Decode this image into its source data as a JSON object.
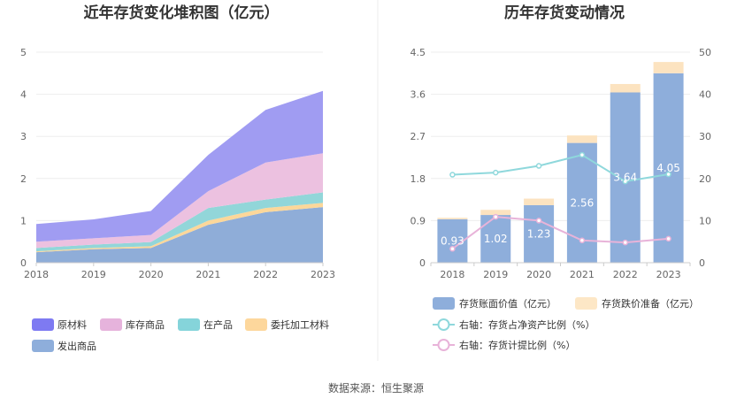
{
  "source_note": "数据来源：恒生聚源",
  "chart_data": [
    {
      "type": "area",
      "title": "近年存货变化堆积图（亿元）",
      "stacked": true,
      "categories": [
        "2018",
        "2019",
        "2020",
        "2021",
        "2022",
        "2023"
      ],
      "y_ticks": [
        "0",
        "1",
        "2",
        "3",
        "4",
        "5"
      ],
      "ylim": [
        0,
        5
      ],
      "legend_position": "bottom",
      "series": [
        {
          "name": "发出商品",
          "color": "#8fadd8",
          "values": [
            0.25,
            0.32,
            0.35,
            0.9,
            1.2,
            1.32
          ]
        },
        {
          "name": "委托加工材料",
          "color": "#fcd79a",
          "values": [
            0.02,
            0.03,
            0.04,
            0.1,
            0.1,
            0.1
          ]
        },
        {
          "name": "在产品",
          "color": "#92d6d9",
          "values": [
            0.08,
            0.08,
            0.1,
            0.3,
            0.2,
            0.25
          ]
        },
        {
          "name": "库存商品",
          "color": "#ecc1e0",
          "values": [
            0.15,
            0.15,
            0.17,
            0.4,
            0.88,
            0.93
          ]
        },
        {
          "name": "原材料",
          "color": "#a09cf2",
          "values": [
            0.42,
            0.45,
            0.57,
            0.86,
            1.25,
            1.48
          ]
        }
      ],
      "legend_order": [
        "原材料",
        "库存商品",
        "在产品",
        "委托加工材料",
        "发出商品"
      ],
      "legend_swatch_colors": {
        "原材料": "#7e7af2",
        "库存商品": "#e6b3dc",
        "在产品": "#85d4da",
        "委托加工材料": "#fdd79c",
        "发出商品": "#8eaedb"
      }
    },
    {
      "type": "bar",
      "title": "历年存货变动情况",
      "stacked": true,
      "categories": [
        "2018",
        "2019",
        "2020",
        "2021",
        "2022",
        "2023"
      ],
      "y_left_ticks": [
        "0",
        "0.9",
        "1.8",
        "2.7",
        "3.6",
        "4.5"
      ],
      "ylim_left": [
        0,
        4.5
      ],
      "y_right_ticks": [
        "0",
        "10",
        "20",
        "30",
        "40",
        "50"
      ],
      "ylim_right": [
        0,
        50
      ],
      "legend_position": "bottom",
      "bars": [
        {
          "name": "存货账面价值（亿元）",
          "color": "#8eaedb",
          "values": [
            0.93,
            1.02,
            1.23,
            2.56,
            3.64,
            4.05
          ],
          "labels": [
            "0.93",
            "1.02",
            "1.23",
            "2.56",
            "3.64",
            "4.05"
          ]
        },
        {
          "name": "存货跌价准备（亿元）",
          "color": "#fce3c0",
          "legend_color": "#fde7c6",
          "values": [
            0.03,
            0.11,
            0.14,
            0.16,
            0.18,
            0.24
          ]
        }
      ],
      "lines": [
        {
          "name": "右轴：存货占净资产比例（%）",
          "color": "#8fd8dc",
          "axis": "right",
          "values": [
            20.9,
            21.4,
            23.0,
            25.6,
            19.3,
            21.0
          ]
        },
        {
          "name": "右轴：存货计提比例（%）",
          "color": "#e8b3d9",
          "axis": "right",
          "values": [
            3.3,
            10.9,
            10.0,
            5.3,
            4.8,
            5.7
          ]
        }
      ]
    }
  ]
}
